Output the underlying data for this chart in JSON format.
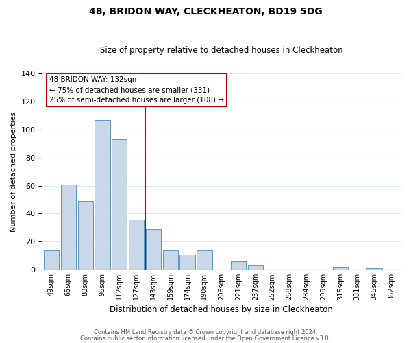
{
  "title": "48, BRIDON WAY, CLECKHEATON, BD19 5DG",
  "subtitle": "Size of property relative to detached houses in Cleckheaton",
  "xlabel": "Distribution of detached houses by size in Cleckheaton",
  "ylabel": "Number of detached properties",
  "bar_labels": [
    "49sqm",
    "65sqm",
    "80sqm",
    "96sqm",
    "112sqm",
    "127sqm",
    "143sqm",
    "159sqm",
    "174sqm",
    "190sqm",
    "206sqm",
    "221sqm",
    "237sqm",
    "252sqm",
    "268sqm",
    "284sqm",
    "299sqm",
    "315sqm",
    "331sqm",
    "346sqm",
    "362sqm"
  ],
  "bar_values": [
    14,
    61,
    49,
    107,
    93,
    36,
    29,
    14,
    11,
    14,
    0,
    6,
    3,
    0,
    0,
    0,
    0,
    2,
    0,
    1,
    0
  ],
  "bar_color": "#c8d8e8",
  "bar_edge_color": "#5a9ac8",
  "vline_x_index": 5.5,
  "vline_color": "#cc0000",
  "ylim": [
    0,
    140
  ],
  "yticks": [
    0,
    20,
    40,
    60,
    80,
    100,
    120,
    140
  ],
  "annotation_title": "48 BRIDON WAY: 132sqm",
  "annotation_line1": "← 75% of detached houses are smaller (331)",
  "annotation_line2": "25% of semi-detached houses are larger (108) →",
  "footer1": "Contains HM Land Registry data © Crown copyright and database right 2024.",
  "footer2": "Contains public sector information licensed under the Open Government Licence v3.0.",
  "background_color": "#ffffff",
  "grid_color": "#dce8f0"
}
